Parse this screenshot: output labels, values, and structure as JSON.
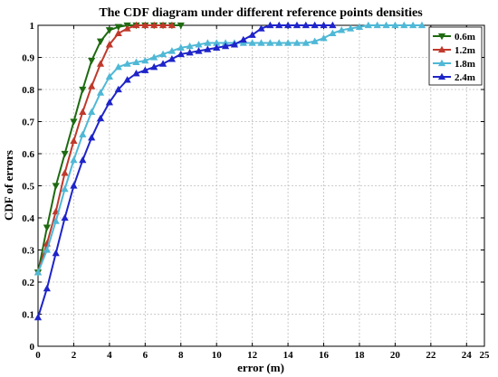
{
  "chart_data": {
    "type": "line",
    "title": "The CDF diagram under different reference points densities",
    "xlabel": "error (m)",
    "ylabel": "CDF of errors",
    "xlim": [
      0,
      25
    ],
    "ylim": [
      0,
      1
    ],
    "xticks": [
      0,
      2,
      4,
      6,
      8,
      10,
      12,
      14,
      16,
      18,
      20,
      22,
      24,
      25
    ],
    "yticks": [
      0,
      0.1,
      0.2,
      0.3,
      0.4,
      0.5,
      0.6,
      0.7,
      0.8,
      0.9,
      1
    ],
    "grid": true,
    "legend_position": "top-right",
    "series": [
      {
        "name": "0.6m",
        "color": "#1d6a10",
        "marker": "triangle-down",
        "x": [
          0,
          0.5,
          1,
          1.5,
          2,
          2.5,
          3,
          3.5,
          4,
          4.5,
          5,
          5.5,
          6,
          6.5,
          7,
          7.5,
          8
        ],
        "y": [
          0.23,
          0.37,
          0.5,
          0.6,
          0.7,
          0.8,
          0.89,
          0.95,
          0.985,
          0.995,
          1,
          1,
          1,
          1,
          1,
          1,
          1
        ]
      },
      {
        "name": "1.2m",
        "color": "#c0392b",
        "marker": "triangle-up",
        "x": [
          0,
          0.5,
          1,
          1.5,
          2,
          2.5,
          3,
          3.5,
          4,
          4.5,
          5,
          5.5,
          6,
          6.5,
          7,
          7.5
        ],
        "y": [
          0.23,
          0.32,
          0.42,
          0.54,
          0.64,
          0.73,
          0.81,
          0.88,
          0.94,
          0.975,
          0.99,
          1,
          1,
          1,
          1,
          1
        ]
      },
      {
        "name": "1.8m",
        "color": "#4fb8d6",
        "marker": "triangle-up",
        "x": [
          0,
          0.5,
          1,
          1.5,
          2,
          2.5,
          3,
          3.5,
          4,
          4.5,
          5,
          5.5,
          6,
          6.5,
          7,
          7.5,
          8,
          8.5,
          9,
          9.5,
          10,
          10.5,
          11,
          11.5,
          12,
          12.5,
          13,
          13.5,
          14,
          14.5,
          15,
          15.5,
          16,
          16.5,
          17,
          17.5,
          18,
          18.5,
          19,
          19.5,
          20,
          20.5,
          21,
          21.5
        ],
        "y": [
          0.23,
          0.3,
          0.39,
          0.49,
          0.58,
          0.66,
          0.73,
          0.79,
          0.84,
          0.87,
          0.88,
          0.885,
          0.89,
          0.9,
          0.91,
          0.92,
          0.93,
          0.935,
          0.94,
          0.945,
          0.945,
          0.945,
          0.945,
          0.945,
          0.945,
          0.945,
          0.945,
          0.945,
          0.945,
          0.945,
          0.945,
          0.95,
          0.96,
          0.975,
          0.985,
          0.99,
          0.995,
          1,
          1,
          1,
          1,
          1,
          1,
          1
        ]
      },
      {
        "name": "2.4m",
        "color": "#1e24c9",
        "marker": "triangle-up",
        "x": [
          0,
          0.5,
          1,
          1.5,
          2,
          2.5,
          3,
          3.5,
          4,
          4.5,
          5,
          5.5,
          6,
          6.5,
          7,
          7.5,
          8,
          8.5,
          9,
          9.5,
          10,
          10.5,
          11,
          11.5,
          12,
          12.5,
          13,
          13.5,
          14,
          14.5,
          15,
          15.5,
          16,
          16.5
        ],
        "y": [
          0.09,
          0.18,
          0.29,
          0.4,
          0.5,
          0.58,
          0.65,
          0.71,
          0.76,
          0.8,
          0.83,
          0.85,
          0.86,
          0.87,
          0.88,
          0.895,
          0.91,
          0.915,
          0.92,
          0.925,
          0.93,
          0.935,
          0.94,
          0.955,
          0.97,
          0.99,
          1,
          1,
          1,
          1,
          1,
          1,
          1,
          1
        ]
      }
    ]
  }
}
